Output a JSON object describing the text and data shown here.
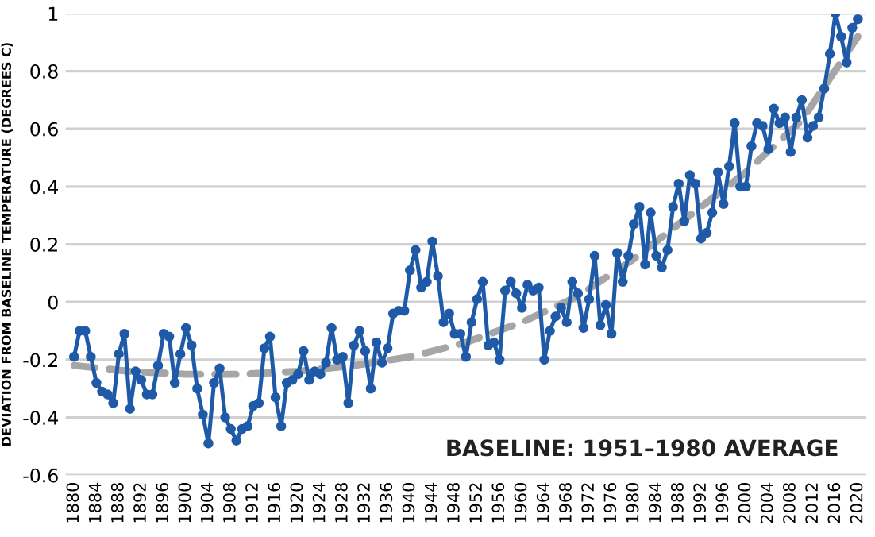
{
  "chart_data": {
    "type": "line",
    "ylabel": "DEVIATION FROM BASELINE TEMPERATURE (DEGREES C)",
    "annotations": [
      "BASELINE: 1951–1980 AVERAGE"
    ],
    "xlim": [
      1878.5,
      2021.5
    ],
    "xticks": [
      1880,
      1884,
      1888,
      1892,
      1896,
      1900,
      1904,
      1908,
      1912,
      1916,
      1920,
      1924,
      1928,
      1932,
      1936,
      1940,
      1944,
      1948,
      1952,
      1956,
      1960,
      1964,
      1968,
      1972,
      1976,
      1980,
      1984,
      1988,
      1992,
      1996,
      2000,
      2004,
      2008,
      2012,
      2016,
      2020
    ],
    "ylim": [
      -0.6,
      1
    ],
    "yticks": [
      {
        "value": -0.6,
        "label": "-0.6"
      },
      {
        "value": -0.4,
        "label": "-0.4"
      },
      {
        "value": -0.2,
        "label": "-0.2"
      },
      {
        "value": 0,
        "label": "0"
      },
      {
        "value": 0.2,
        "label": "0.2"
      },
      {
        "value": 0.4,
        "label": "0.4"
      },
      {
        "value": 0.6,
        "label": "0.6"
      },
      {
        "value": 0.8,
        "label": "0.8"
      },
      {
        "value": 1,
        "label": "1"
      }
    ],
    "grid": "y",
    "legend": false,
    "series": [
      {
        "color": "#1f5aa8",
        "marker": "circle",
        "line_style": "solid",
        "x": [
          1880,
          1881,
          1882,
          1883,
          1884,
          1885,
          1886,
          1887,
          1888,
          1889,
          1890,
          1891,
          1892,
          1893,
          1894,
          1895,
          1896,
          1897,
          1898,
          1899,
          1900,
          1901,
          1902,
          1903,
          1904,
          1905,
          1906,
          1907,
          1908,
          1909,
          1910,
          1911,
          1912,
          1913,
          1914,
          1915,
          1916,
          1917,
          1918,
          1919,
          1920,
          1921,
          1922,
          1923,
          1924,
          1925,
          1926,
          1927,
          1928,
          1929,
          1930,
          1931,
          1932,
          1933,
          1934,
          1935,
          1936,
          1937,
          1938,
          1939,
          1940,
          1941,
          1942,
          1943,
          1944,
          1945,
          1946,
          1947,
          1948,
          1949,
          1950,
          1951,
          1952,
          1953,
          1954,
          1955,
          1956,
          1957,
          1958,
          1959,
          1960,
          1961,
          1962,
          1963,
          1964,
          1965,
          1966,
          1967,
          1968,
          1969,
          1970,
          1971,
          1972,
          1973,
          1974,
          1975,
          1976,
          1977,
          1978,
          1979,
          1980,
          1981,
          1982,
          1983,
          1984,
          1985,
          1986,
          1987,
          1988,
          1989,
          1990,
          1991,
          1992,
          1993,
          1994,
          1995,
          1996,
          1997,
          1998,
          1999,
          2000,
          2001,
          2002,
          2003,
          2004,
          2005,
          2006,
          2007,
          2008,
          2009,
          2010,
          2011,
          2012,
          2013,
          2014,
          2015,
          2016,
          2017,
          2018,
          2019,
          2020
        ],
        "values": [
          -0.19,
          -0.1,
          -0.1,
          -0.19,
          -0.28,
          -0.31,
          -0.32,
          -0.35,
          -0.18,
          -0.11,
          -0.37,
          -0.24,
          -0.27,
          -0.32,
          -0.32,
          -0.22,
          -0.11,
          -0.12,
          -0.28,
          -0.18,
          -0.09,
          -0.15,
          -0.3,
          -0.39,
          -0.49,
          -0.28,
          -0.23,
          -0.4,
          -0.44,
          -0.48,
          -0.44,
          -0.43,
          -0.36,
          -0.35,
          -0.16,
          -0.12,
          -0.33,
          -0.43,
          -0.28,
          -0.27,
          -0.25,
          -0.17,
          -0.27,
          -0.24,
          -0.25,
          -0.21,
          -0.09,
          -0.2,
          -0.19,
          -0.35,
          -0.15,
          -0.1,
          -0.17,
          -0.3,
          -0.14,
          -0.21,
          -0.16,
          -0.04,
          -0.03,
          -0.03,
          0.11,
          0.18,
          0.05,
          0.07,
          0.21,
          0.09,
          -0.07,
          -0.04,
          -0.11,
          -0.11,
          -0.19,
          -0.07,
          0.01,
          0.07,
          -0.15,
          -0.14,
          -0.2,
          0.04,
          0.07,
          0.03,
          -0.02,
          0.06,
          0.04,
          0.05,
          -0.2,
          -0.1,
          -0.05,
          -0.02,
          -0.07,
          0.07,
          0.03,
          -0.09,
          0.01,
          0.16,
          -0.08,
          -0.01,
          -0.11,
          0.17,
          0.07,
          0.16,
          0.27,
          0.33,
          0.13,
          0.31,
          0.16,
          0.12,
          0.18,
          0.33,
          0.41,
          0.28,
          0.44,
          0.41,
          0.22,
          0.24,
          0.31,
          0.45,
          0.34,
          0.47,
          0.62,
          0.4,
          0.4,
          0.54,
          0.62,
          0.61,
          0.53,
          0.67,
          0.62,
          0.64,
          0.52,
          0.64,
          0.7,
          0.57,
          0.61,
          0.64,
          0.74,
          0.86,
          1.0,
          0.92,
          0.83,
          0.95,
          0.98
        ]
      },
      {
        "color": "#a6a6a6",
        "marker": "none",
        "line_style": "dashed",
        "x": [
          1880,
          1890,
          1900,
          1910,
          1920,
          1930,
          1940,
          1950,
          1960,
          1970,
          1980,
          1990,
          2000,
          2010,
          2020
        ],
        "values": [
          -0.22,
          -0.24,
          -0.25,
          -0.25,
          -0.24,
          -0.22,
          -0.19,
          -0.14,
          -0.07,
          0.02,
          0.15,
          0.3,
          0.45,
          0.63,
          0.92
        ]
      }
    ]
  }
}
